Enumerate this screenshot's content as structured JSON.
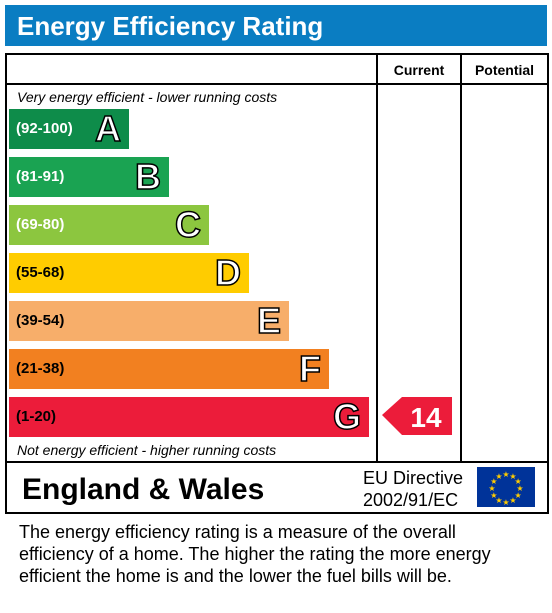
{
  "header": {
    "title": "Energy Efficiency Rating"
  },
  "columns": {
    "current": "Current",
    "potential": "Potential"
  },
  "notes": {
    "top": "Very energy efficient - lower running costs",
    "bottom": "Not energy efficient - higher running costs"
  },
  "chart_data": {
    "type": "bar",
    "categories": [
      "A",
      "B",
      "C",
      "D",
      "E",
      "F",
      "G"
    ],
    "bands": [
      {
        "letter": "A",
        "range": "(92-100)",
        "color": "#0e8c4a",
        "text_color": "#ffffff"
      },
      {
        "letter": "B",
        "range": "(81-91)",
        "color": "#1aa352",
        "text_color": "#ffffff"
      },
      {
        "letter": "C",
        "range": "(69-80)",
        "color": "#8cc63f",
        "text_color": "#ffffff"
      },
      {
        "letter": "D",
        "range": "(55-68)",
        "color": "#ffcc00",
        "text_color": "#000000"
      },
      {
        "letter": "E",
        "range": "(39-54)",
        "color": "#f7ae6a",
        "text_color": "#000000"
      },
      {
        "letter": "F",
        "range": "(21-38)",
        "color": "#f28020",
        "text_color": "#000000"
      },
      {
        "letter": "G",
        "range": "(1-20)",
        "color": "#ec1c3a",
        "text_color": "#000000"
      }
    ],
    "current": {
      "value": 14,
      "band": "G",
      "color": "#ec1c3a"
    },
    "potential": null
  },
  "footer": {
    "country": "England & Wales",
    "directive_line1": "EU Directive",
    "directive_line2": "2002/91/EC",
    "flag_icon": "eu-flag-icon"
  },
  "description": {
    "line1": "The energy efficiency rating is a measure of the overall",
    "line2": "efficiency of a home.  The higher the rating the more energy",
    "line3": "efficient the home is and the lower the fuel bills will be."
  }
}
